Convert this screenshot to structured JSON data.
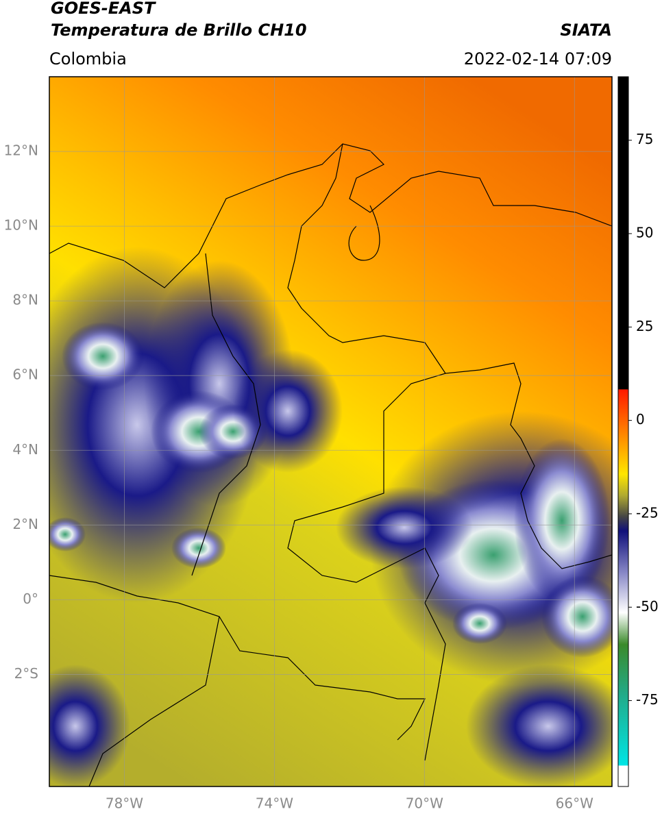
{
  "header": {
    "title": "GOES-EAST",
    "subtitle": "Temperatura de Brillo CH10",
    "source": "SIATA",
    "region": "Colombia",
    "datetime": "2022-02-14 07:09"
  },
  "map": {
    "xlim": [
      -80,
      -65
    ],
    "ylim": [
      -5,
      14
    ],
    "xticks": [
      {
        "value": -78,
        "label": "78°W"
      },
      {
        "value": -74,
        "label": "74°W"
      },
      {
        "value": -70,
        "label": "70°W"
      },
      {
        "value": -66,
        "label": "66°W"
      }
    ],
    "yticks": [
      {
        "value": 12,
        "label": "12°N"
      },
      {
        "value": 10,
        "label": "10°N"
      },
      {
        "value": 8,
        "label": "8°N"
      },
      {
        "value": 6,
        "label": "6°N"
      },
      {
        "value": 4,
        "label": "4°N"
      },
      {
        "value": 2,
        "label": "2°N"
      },
      {
        "value": 0,
        "label": "0°"
      },
      {
        "value": -2,
        "label": "2°S"
      }
    ],
    "grid": true,
    "colorbar": {
      "lim": [
        -98,
        92
      ],
      "ticks": [
        75,
        50,
        25,
        0,
        -25,
        -50,
        -75
      ]
    }
  }
}
